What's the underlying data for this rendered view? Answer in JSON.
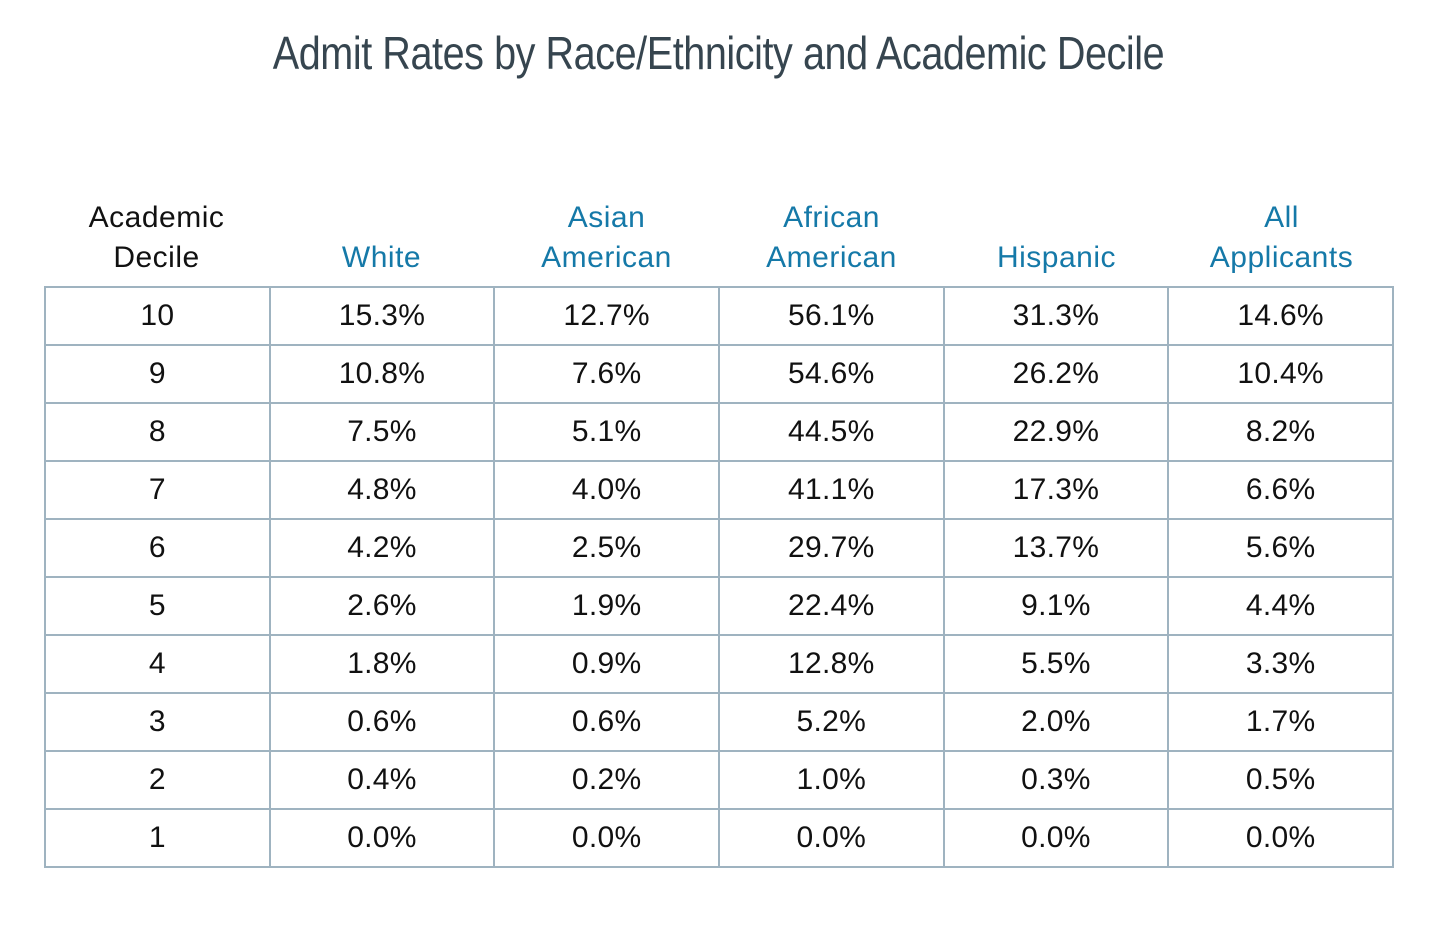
{
  "chart_data": {
    "type": "table",
    "title": "Admit Rates by Race/Ethnicity and Academic Decile",
    "columns": [
      {
        "key": "decile",
        "label_lines": [
          "Academic",
          "Decile"
        ]
      },
      {
        "key": "white",
        "label_lines": [
          "",
          "White"
        ]
      },
      {
        "key": "asian_american",
        "label_lines": [
          "Asian",
          "American"
        ]
      },
      {
        "key": "african_american",
        "label_lines": [
          "African",
          "American"
        ]
      },
      {
        "key": "hispanic",
        "label_lines": [
          "",
          "Hispanic"
        ]
      },
      {
        "key": "all_applicants",
        "label_lines": [
          "All",
          "Applicants"
        ]
      }
    ],
    "rows": [
      [
        "10",
        "15.3%",
        "12.7%",
        "56.1%",
        "31.3%",
        "14.6%"
      ],
      [
        "9",
        "10.8%",
        "7.6%",
        "54.6%",
        "26.2%",
        "10.4%"
      ],
      [
        "8",
        "7.5%",
        "5.1%",
        "44.5%",
        "22.9%",
        "8.2%"
      ],
      [
        "7",
        "4.8%",
        "4.0%",
        "41.1%",
        "17.3%",
        "6.6%"
      ],
      [
        "6",
        "4.2%",
        "2.5%",
        "29.7%",
        "13.7%",
        "5.6%"
      ],
      [
        "5",
        "2.6%",
        "1.9%",
        "22.4%",
        "9.1%",
        "4.4%"
      ],
      [
        "4",
        "1.8%",
        "0.9%",
        "12.8%",
        "5.5%",
        "3.3%"
      ],
      [
        "3",
        "0.6%",
        "0.6%",
        "5.2%",
        "2.0%",
        "1.7%"
      ],
      [
        "2",
        "0.4%",
        "0.2%",
        "1.0%",
        "0.3%",
        "0.5%"
      ],
      [
        "1",
        "0.0%",
        "0.0%",
        "0.0%",
        "0.0%",
        "0.0%"
      ]
    ],
    "series": [
      {
        "name": "White",
        "values": [
          15.3,
          10.8,
          7.5,
          4.8,
          4.2,
          2.6,
          1.8,
          0.6,
          0.4,
          0.0
        ]
      },
      {
        "name": "Asian American",
        "values": [
          12.7,
          7.6,
          5.1,
          4.0,
          2.5,
          1.9,
          0.9,
          0.6,
          0.2,
          0.0
        ]
      },
      {
        "name": "African American",
        "values": [
          56.1,
          54.6,
          44.5,
          41.1,
          29.7,
          22.4,
          12.8,
          5.2,
          1.0,
          0.0
        ]
      },
      {
        "name": "Hispanic",
        "values": [
          31.3,
          26.2,
          22.9,
          17.3,
          13.7,
          9.1,
          5.5,
          2.0,
          0.3,
          0.0
        ]
      },
      {
        "name": "All Applicants",
        "values": [
          14.6,
          10.4,
          8.2,
          6.6,
          5.6,
          4.4,
          3.3,
          1.7,
          0.5,
          0.0
        ]
      }
    ],
    "categories": [
      "10",
      "9",
      "8",
      "7",
      "6",
      "5",
      "4",
      "3",
      "2",
      "1"
    ],
    "colors": {
      "title": "#36454f",
      "group_header": "#1579a8",
      "first_header": "#111111",
      "cell_text": "#111111",
      "grid_line": "#9fb3c0"
    }
  }
}
